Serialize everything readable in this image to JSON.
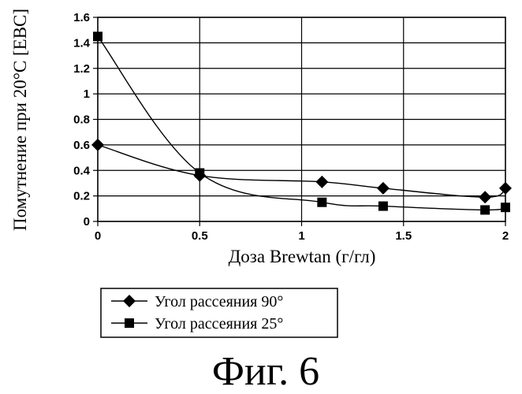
{
  "chart_data": {
    "type": "scatter",
    "xlabel": "Доза Brewtan (г/гл)",
    "ylabel": "Помутнение при 20°C [EBC]",
    "xlim": [
      0,
      2
    ],
    "ylim": [
      0,
      1.6
    ],
    "x_ticks": [
      "0",
      "0.5",
      "1",
      "1.5",
      "2"
    ],
    "y_ticks": [
      "0",
      "0.2",
      "0.4",
      "0.6",
      "0.8",
      "1",
      "1.2",
      "1.4",
      "1.6"
    ],
    "grid": "vertical-and-horizontal",
    "legend_position": "bottom-left",
    "series": [
      {
        "name": "Угол рассеяния 90°",
        "marker": "diamond",
        "x": [
          0,
          0.5,
          1.1,
          1.4,
          1.9,
          2
        ],
        "y": [
          0.6,
          0.36,
          0.31,
          0.26,
          0.19,
          0.26
        ]
      },
      {
        "name": "Угол рассеяния 25°",
        "marker": "square",
        "x": [
          0,
          0.5,
          1.1,
          1.4,
          1.9,
          2
        ],
        "y": [
          1.45,
          0.38,
          0.15,
          0.12,
          0.09,
          0.11
        ]
      }
    ]
  },
  "caption": "Фиг. 6"
}
